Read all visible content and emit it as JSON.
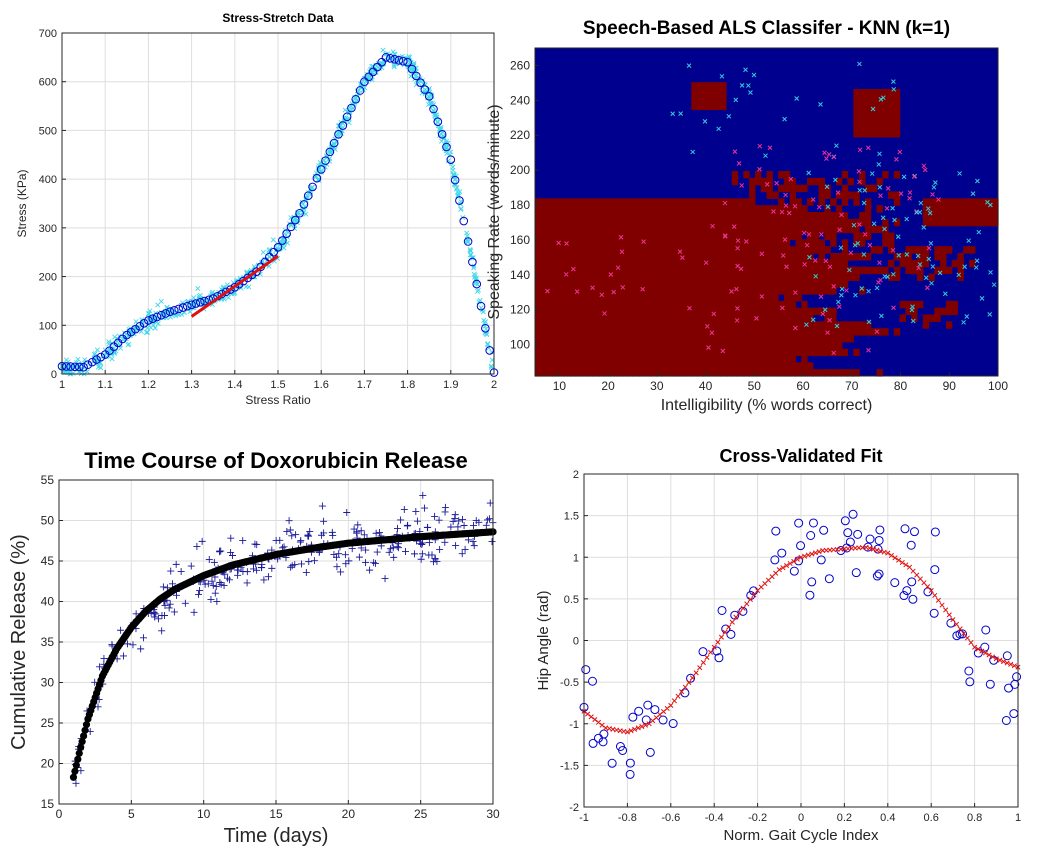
{
  "chart_data": [
    {
      "type": "scatter",
      "title": "Stress-Stretch Data",
      "xlabel": "Stress Ratio",
      "ylabel": "Stress (KPa)",
      "xlim": [
        1,
        2
      ],
      "ylim": [
        0,
        700
      ],
      "xticks": [
        "1",
        "1.1",
        "1.2",
        "1.3",
        "1.4",
        "1.5",
        "1.6",
        "1.7",
        "1.8",
        "1.9",
        "2"
      ],
      "yticks": [
        "0",
        "100",
        "200",
        "300",
        "400",
        "500",
        "600",
        "700"
      ],
      "grid": true,
      "colors": {
        "raw": "#40d8e8",
        "fit": "#0000cc",
        "line": "#e01010"
      },
      "fit_points": [
        [
          1.0,
          16
        ],
        [
          1.05,
          14
        ],
        [
          1.1,
          40
        ],
        [
          1.15,
          80
        ],
        [
          1.2,
          110
        ],
        [
          1.25,
          128
        ],
        [
          1.3,
          142
        ],
        [
          1.35,
          155
        ],
        [
          1.4,
          178
        ],
        [
          1.45,
          210
        ],
        [
          1.5,
          260
        ],
        [
          1.55,
          330
        ],
        [
          1.6,
          420
        ],
        [
          1.65,
          510
        ],
        [
          1.7,
          600
        ],
        [
          1.75,
          650
        ],
        [
          1.8,
          640
        ],
        [
          1.85,
          570
        ],
        [
          1.9,
          440
        ],
        [
          1.95,
          230
        ],
        [
          2.0,
          3
        ]
      ],
      "linear_segment": [
        [
          1.3,
          118
        ],
        [
          1.5,
          242
        ]
      ]
    },
    {
      "type": "heatmap",
      "title": "Speech-Based ALS Classifer - KNN (k=1)",
      "xlabel": "Intelligibility (% words correct)",
      "ylabel": "Speaking Rate (words/minute)",
      "xlim": [
        5,
        100
      ],
      "ylim": [
        82,
        270
      ],
      "xticks": [
        "10",
        "20",
        "30",
        "40",
        "50",
        "60",
        "70",
        "80",
        "90",
        "100"
      ],
      "yticks": [
        "100",
        "120",
        "140",
        "160",
        "180",
        "200",
        "220",
        "240",
        "260"
      ],
      "colors": {
        "class_a": "#00008f",
        "class_b": "#800000",
        "marker_a": "#33ccdd",
        "marker_b": "#ee3399"
      }
    },
    {
      "type": "scatter",
      "title": "Time Course of Doxorubicin Release",
      "xlabel": "Time (days)",
      "ylabel": "Cumulative Release (%)",
      "xlim": [
        0,
        30
      ],
      "ylim": [
        15,
        55
      ],
      "xticks": [
        "0",
        "5",
        "10",
        "15",
        "20",
        "25",
        "30"
      ],
      "yticks": [
        "15",
        "20",
        "25",
        "30",
        "35",
        "40",
        "45",
        "50",
        "55"
      ],
      "grid": true,
      "colors": {
        "data": "#1a1a99",
        "fit": "#000000"
      },
      "fit_points": [
        [
          1,
          18.3
        ],
        [
          1.5,
          22
        ],
        [
          2,
          25.5
        ],
        [
          3,
          30.8
        ],
        [
          4,
          34.2
        ],
        [
          5,
          36.8
        ],
        [
          6,
          38.8
        ],
        [
          7,
          40.3
        ],
        [
          8,
          41.5
        ],
        [
          10,
          43.2
        ],
        [
          12,
          44.5
        ],
        [
          15,
          45.8
        ],
        [
          18,
          46.7
        ],
        [
          20,
          47.2
        ],
        [
          25,
          48
        ],
        [
          30,
          48.6
        ]
      ]
    },
    {
      "type": "scatter",
      "title": "Cross-Validated Fit",
      "xlabel": "Norm. Gait Cycle Index",
      "ylabel": "Hip Angle (rad)",
      "xlim": [
        -1,
        1
      ],
      "ylim": [
        -2,
        2
      ],
      "xticks": [
        "-1",
        "-0.8",
        "-0.6",
        "-0.4",
        "-0.2",
        "0",
        "0.2",
        "0.4",
        "0.6",
        "0.8",
        "1"
      ],
      "yticks": [
        "-2",
        "-1.5",
        "-1",
        "-0.5",
        "0",
        "0.5",
        "1",
        "1.5",
        "2"
      ],
      "grid": true,
      "colors": {
        "data": "#0000cc",
        "fit": "#e01010"
      },
      "fit_points": [
        [
          -1,
          -0.85
        ],
        [
          -0.9,
          -1.05
        ],
        [
          -0.8,
          -1.1
        ],
        [
          -0.7,
          -1.0
        ],
        [
          -0.6,
          -0.78
        ],
        [
          -0.5,
          -0.45
        ],
        [
          -0.4,
          -0.08
        ],
        [
          -0.3,
          0.28
        ],
        [
          -0.2,
          0.6
        ],
        [
          -0.1,
          0.85
        ],
        [
          0,
          1.0
        ],
        [
          0.1,
          1.08
        ],
        [
          0.2,
          1.1
        ],
        [
          0.3,
          1.12
        ],
        [
          0.4,
          1.05
        ],
        [
          0.5,
          0.88
        ],
        [
          0.6,
          0.6
        ],
        [
          0.7,
          0.25
        ],
        [
          0.8,
          -0.08
        ],
        [
          0.9,
          -0.22
        ],
        [
          1,
          -0.32
        ]
      ]
    }
  ]
}
